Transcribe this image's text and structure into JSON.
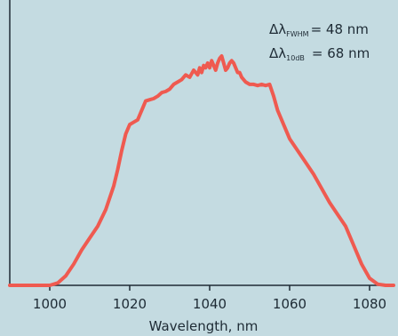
{
  "chart_data": {
    "type": "line",
    "xlabel": "Wavelength, nm",
    "ylabel": "",
    "title": "",
    "xlim": [
      990,
      1086
    ],
    "ylim": [
      0,
      100
    ],
    "xticks": [
      1000,
      1020,
      1040,
      1060,
      1080
    ],
    "grid": false,
    "annotations": [
      {
        "symbol": "Δλ",
        "subscript": "FWHM",
        "text": "= 48 nm"
      },
      {
        "symbol": "Δλ",
        "subscript": "10dB",
        "text": "= 68 nm"
      }
    ],
    "series": [
      {
        "color": "#ef5a50",
        "x": [
          990,
          1000,
          1002,
          1004,
          1006,
          1008,
          1010,
          1012,
          1014,
          1016,
          1017,
          1018,
          1019,
          1020,
          1021,
          1022,
          1023,
          1024,
          1025,
          1026,
          1027,
          1028,
          1029,
          1030,
          1031,
          1032,
          1033,
          1034,
          1035,
          1036,
          1037,
          1037.5,
          1038,
          1038.5,
          1039,
          1039.5,
          1040,
          1040.5,
          1041,
          1041.5,
          1042,
          1042.5,
          1043,
          1043.5,
          1044,
          1044.5,
          1045,
          1045.5,
          1046,
          1046.5,
          1047,
          1047.5,
          1048,
          1049,
          1050,
          1051,
          1052,
          1053,
          1054,
          1055,
          1056,
          1057,
          1058,
          1059,
          1060,
          1062,
          1064,
          1066,
          1068,
          1070,
          1072,
          1074,
          1076,
          1078,
          1080,
          1082,
          1084,
          1086
        ],
        "y": [
          0,
          0,
          1,
          4,
          9,
          15,
          20,
          25,
          32,
          42,
          49,
          57,
          64,
          68,
          69,
          70,
          74,
          78,
          78.5,
          79,
          80,
          81.5,
          82,
          83,
          85,
          86,
          87,
          89,
          88,
          91,
          89,
          92,
          90,
          93,
          92,
          94,
          92,
          95,
          93,
          91,
          94,
          96,
          97,
          94,
          91,
          92,
          94,
          95,
          94,
          92,
          90,
          90,
          88,
          86,
          85,
          85,
          84.5,
          85,
          84.5,
          85,
          80,
          74,
          70,
          66,
          62,
          57,
          52,
          47,
          41,
          35,
          30,
          25,
          17,
          9,
          3,
          0.5,
          0,
          0
        ]
      }
    ]
  }
}
